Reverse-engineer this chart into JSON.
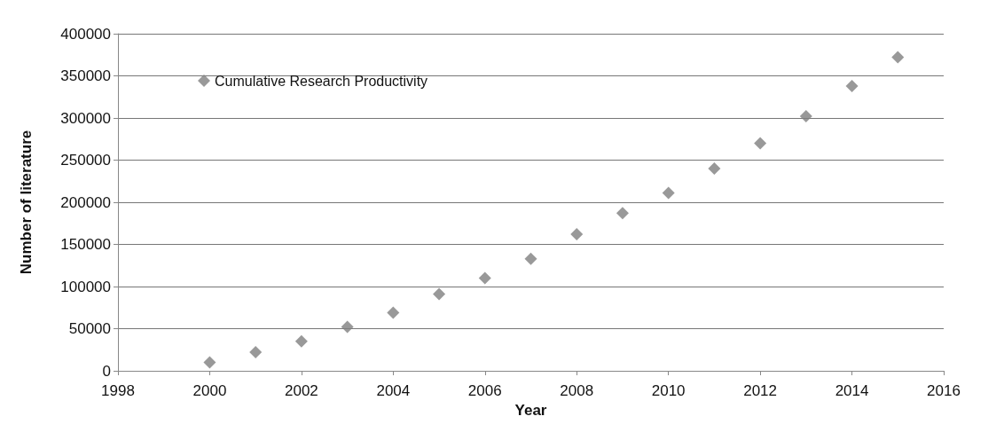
{
  "chart_data": {
    "type": "scatter",
    "xlabel": "Year",
    "ylabel": "Number of literature",
    "x": [
      2000,
      2001,
      2002,
      2003,
      2004,
      2005,
      2006,
      2007,
      2008,
      2009,
      2010,
      2011,
      2012,
      2013,
      2014,
      2015
    ],
    "series": [
      {
        "name": "Cumulative Research Productivity",
        "color": "#808080",
        "values": [
          10000,
          22000,
          35000,
          52000,
          69000,
          91000,
          110000,
          133000,
          162000,
          187000,
          211000,
          240000,
          270000,
          302000,
          338000,
          372000
        ]
      }
    ],
    "xlim": [
      1998,
      2016
    ],
    "xticks": [
      1998,
      2000,
      2002,
      2004,
      2006,
      2008,
      2010,
      2012,
      2014,
      2016
    ],
    "ylim": [
      0,
      400000
    ],
    "yticks": [
      0,
      50000,
      100000,
      150000,
      200000,
      250000,
      300000,
      350000,
      400000
    ],
    "grid": "y",
    "legend": "top left",
    "marker": "diamond"
  }
}
